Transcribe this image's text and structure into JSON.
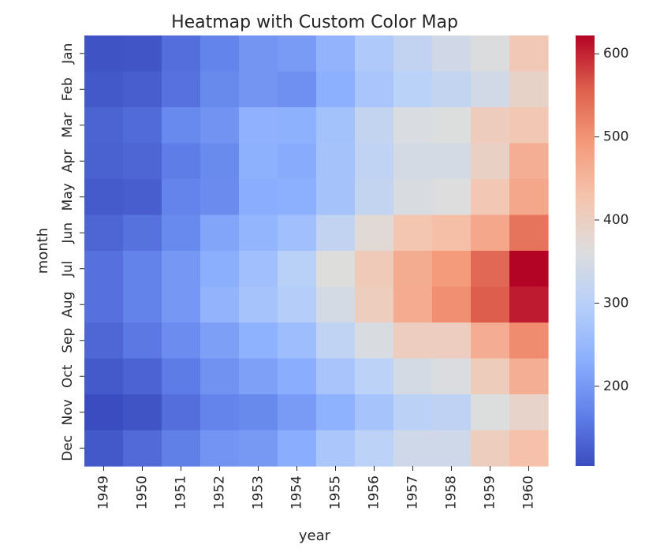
{
  "chart_data": {
    "type": "heatmap",
    "title": "Heatmap with Custom Color Map",
    "xlabel": "year",
    "ylabel": "month",
    "x": [
      "1949",
      "1950",
      "1951",
      "1952",
      "1953",
      "1954",
      "1955",
      "1956",
      "1957",
      "1958",
      "1959",
      "1960"
    ],
    "y": [
      "Jan",
      "Feb",
      "Mar",
      "Apr",
      "May",
      "Jun",
      "Jul",
      "Aug",
      "Sep",
      "Oct",
      "Nov",
      "Dec"
    ],
    "values": [
      [
        112,
        115,
        145,
        171,
        196,
        204,
        242,
        284,
        315,
        340,
        360,
        417
      ],
      [
        118,
        126,
        150,
        180,
        196,
        188,
        233,
        277,
        301,
        318,
        342,
        391
      ],
      [
        132,
        141,
        178,
        193,
        236,
        235,
        267,
        317,
        356,
        362,
        406,
        419
      ],
      [
        129,
        135,
        163,
        181,
        235,
        227,
        269,
        313,
        348,
        348,
        396,
        461
      ],
      [
        121,
        125,
        172,
        183,
        229,
        234,
        270,
        318,
        355,
        363,
        420,
        472
      ],
      [
        135,
        149,
        178,
        218,
        243,
        264,
        315,
        374,
        422,
        435,
        472,
        535
      ],
      [
        148,
        170,
        199,
        230,
        264,
        302,
        364,
        413,
        465,
        491,
        548,
        622
      ],
      [
        148,
        170,
        199,
        242,
        272,
        293,
        347,
        405,
        467,
        505,
        559,
        606
      ],
      [
        136,
        158,
        184,
        209,
        237,
        259,
        312,
        355,
        404,
        404,
        463,
        508
      ],
      [
        119,
        133,
        162,
        191,
        211,
        229,
        274,
        306,
        347,
        359,
        407,
        461
      ],
      [
        104,
        114,
        146,
        172,
        180,
        203,
        237,
        271,
        305,
        310,
        362,
        390
      ],
      [
        118,
        140,
        166,
        194,
        201,
        229,
        278,
        306,
        336,
        337,
        405,
        432
      ]
    ],
    "colormap": "coolwarm",
    "vmin": 104,
    "vmax": 622,
    "colorbar_ticks": [
      200,
      300,
      400,
      500,
      600
    ],
    "colorbar_ticklabels": [
      "200",
      "300",
      "400",
      "500",
      "600"
    ],
    "colors": {
      "low": "#3b4cc0",
      "mid": "#dddddd",
      "high": "#b40426",
      "text": "#262626"
    }
  }
}
